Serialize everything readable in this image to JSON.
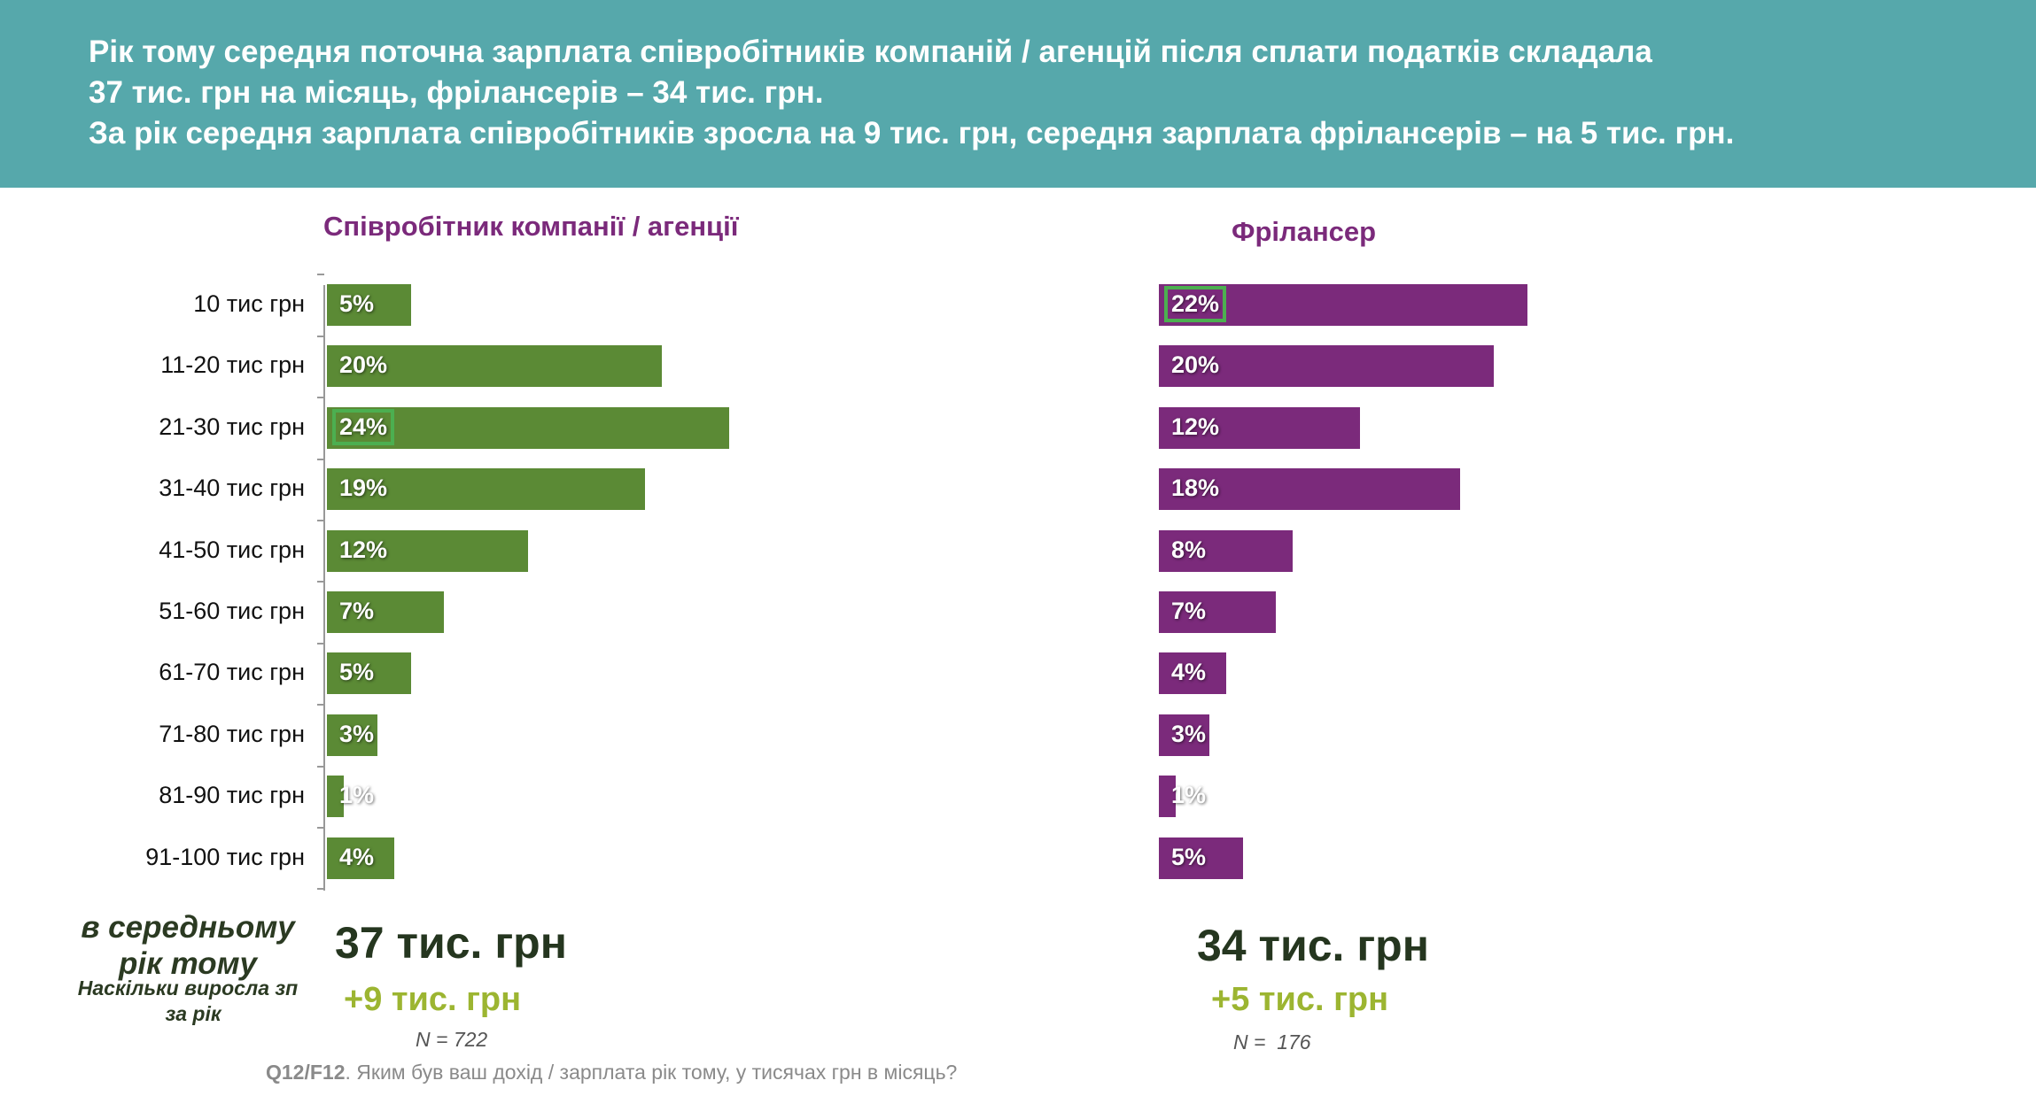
{
  "header": {
    "line1": "Рік тому середня поточна зарплата співробітників компаній / агенцій після сплати податків складала",
    "line2": "37 тис. грн на місяць, фрілансерів – 34 тис. грн.",
    "line3": "За рік середня зарплата співробітників зросла на 9 тис. грн, середня зарплата фрілансерів – на 5 тис. грн."
  },
  "colors": {
    "header_bg": "#56a8ab",
    "employee": "#5b8a35",
    "freelancer": "#7b2a7b",
    "delta": "#9cb531"
  },
  "chart_data": {
    "type": "bar",
    "orientation": "horizontal",
    "categories": [
      "10 тис грн",
      "11-20 тис грн",
      "21-30 тис грн",
      "31-40 тис грн",
      "41-50 тис грн",
      "51-60 тис грн",
      "61-70 тис грн",
      "71-80 тис грн",
      "81-90 тис грн",
      "91-100 тис грн"
    ],
    "series": [
      {
        "name": "Співробітник компанії / агенції",
        "values": [
          5,
          20,
          24,
          19,
          12,
          7,
          5,
          3,
          1,
          4
        ],
        "labels": [
          "5%",
          "20%",
          "24%",
          "19%",
          "12%",
          "7%",
          "5%",
          "3%",
          "1%",
          "4%"
        ],
        "highlight_index": 2
      },
      {
        "name": "Фрілансер",
        "values": [
          22,
          20,
          12,
          18,
          8,
          7,
          4,
          3,
          1,
          5
        ],
        "labels": [
          "22%",
          "20%",
          "12%",
          "18%",
          "8%",
          "7%",
          "4%",
          "3%",
          "1%",
          "5%"
        ],
        "highlight_index": 0
      }
    ],
    "unit": "%"
  },
  "summary": {
    "avg_label_1": "в середньому",
    "avg_label_2": "рік тому",
    "growth_label_1": "Наскільки виросла зп",
    "growth_label_2": "за рік",
    "employee": {
      "avg": "37 тис. грн",
      "delta": "+9 тис. грн",
      "n": "N = 722"
    },
    "freelancer": {
      "avg": "34 тис. грн",
      "delta": "+5 тис. грн",
      "n": "N =  176"
    }
  },
  "footer": {
    "code": "Q12/F12",
    "question": ". Яким був ваш дохід / зарплата рік тому, у тисячах грн в місяць?"
  }
}
